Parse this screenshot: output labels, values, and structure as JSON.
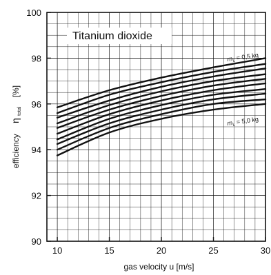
{
  "chart_data": {
    "type": "line",
    "title": "Titanium dioxide",
    "xlabel": "gas velocity  u  [m/s]",
    "ylabel_text": "efficiency",
    "ylabel_symbol": "η",
    "ylabel_subscript": "total",
    "ylabel_unit": "[%]",
    "xlim": [
      9,
      30
    ],
    "ylim": [
      90,
      100
    ],
    "x_ticks": [
      10,
      15,
      20,
      25,
      30
    ],
    "y_ticks": [
      90,
      92,
      94,
      96,
      98,
      100
    ],
    "x_tick_labels": [
      "10",
      "15",
      "20",
      "25",
      "30"
    ],
    "y_tick_labels": [
      "90",
      "92",
      "94",
      "96",
      "98",
      "100"
    ],
    "grid": true,
    "annotations": [
      {
        "symbol": "m",
        "subscript": "L",
        "text": "= 0,5 kg",
        "position": "upper-right"
      },
      {
        "symbol": "m",
        "subscript": "L",
        "text": "= 5,0 kg",
        "position": "lower-right"
      }
    ],
    "x": [
      10,
      15,
      20,
      25,
      30
    ],
    "series": [
      {
        "values": [
          95.85,
          96.6,
          97.15,
          97.6,
          98.0
        ]
      },
      {
        "values": [
          95.6,
          96.4,
          96.95,
          97.4,
          97.75
        ]
      },
      {
        "values": [
          95.4,
          96.15,
          96.75,
          97.2,
          97.55
        ]
      },
      {
        "values": [
          95.15,
          95.95,
          96.55,
          97.0,
          97.3
        ]
      },
      {
        "values": [
          94.95,
          95.75,
          96.35,
          96.8,
          97.1
        ]
      },
      {
        "values": [
          94.7,
          95.55,
          96.15,
          96.6,
          96.9
        ]
      },
      {
        "values": [
          94.45,
          95.35,
          95.95,
          96.4,
          96.65
        ]
      },
      {
        "values": [
          94.25,
          95.15,
          95.75,
          96.2,
          96.45
        ]
      },
      {
        "values": [
          94.0,
          94.95,
          95.55,
          96.0,
          96.2
        ]
      },
      {
        "values": [
          93.75,
          94.75,
          95.35,
          95.75,
          96.0
        ]
      }
    ]
  }
}
